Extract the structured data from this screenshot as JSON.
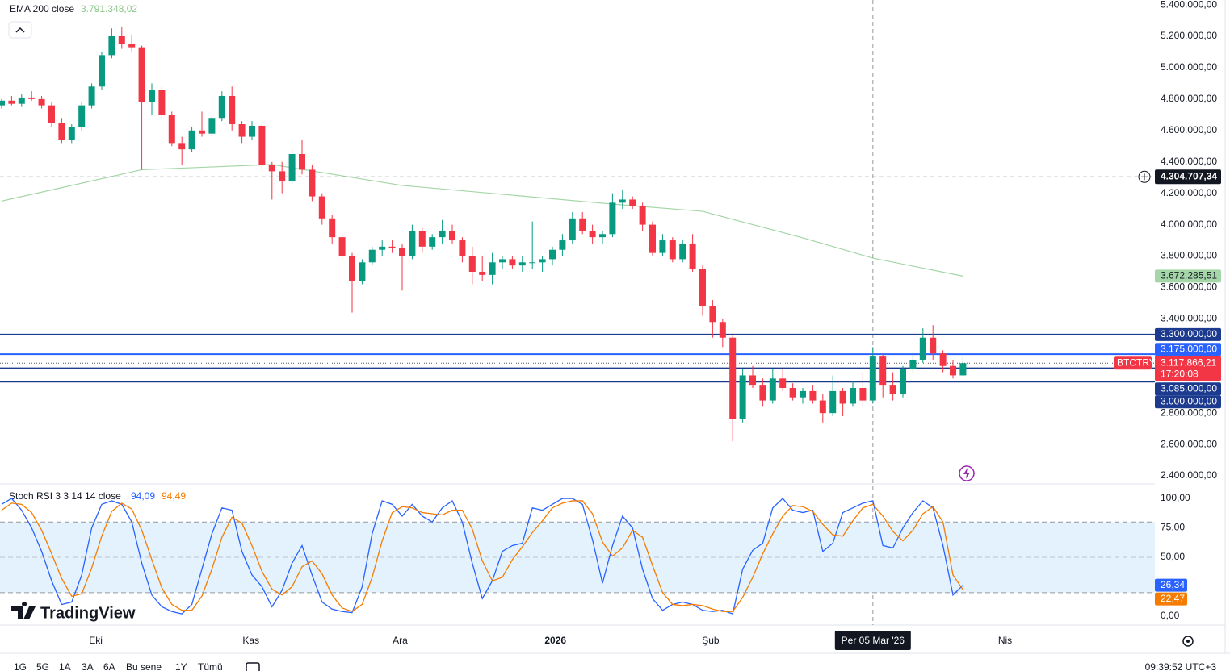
{
  "chart_data": [
    {
      "type": "candlestick",
      "name": "BTCTRY",
      "indicator": "EMA 200 close",
      "indicator_value": "3.791.348,02",
      "indicator_color": "#8bc98b",
      "up_color": "#089981",
      "down_color": "#f23645",
      "open": [
        4760000,
        4790000,
        4770000,
        4810000,
        4800000,
        4760000,
        4650000,
        4540000,
        4620000,
        4760000,
        4880000,
        5080000,
        5200000,
        5150000,
        5130000,
        4780000,
        4860000,
        4700000,
        4520000,
        4480000,
        4600000,
        4580000,
        4680000,
        4820000,
        4640000,
        4560000,
        4630000,
        4380000,
        4340000,
        4280000,
        4450000,
        4350000,
        4180000,
        4040000,
        3920000,
        3800000,
        3640000,
        3760000,
        3840000,
        3860000,
        3850000,
        3800000,
        3960000,
        3860000,
        3920000,
        3960000,
        3900000,
        3800000,
        3700000,
        3680000,
        3760000,
        3780000,
        3740000,
        3760000,
        3760000,
        3780000,
        3840000,
        3900000,
        4040000,
        3960000,
        3920000,
        3940000,
        4140000,
        4160000,
        4120000,
        4000000,
        3820000,
        3900000,
        3780000,
        3880000,
        3720000,
        3480000,
        3380000,
        3280000,
        2760000,
        3040000,
        2980000,
        2880000,
        3020000,
        2960000,
        2900000,
        2940000,
        2880000,
        2800000,
        2940000,
        2860000,
        2960000,
        2880000,
        3160000,
        2980000,
        2920000,
        3080000,
        3140000,
        3280000,
        3180000,
        3100000,
        3040000
      ],
      "high": [
        4800000,
        4820000,
        4830000,
        4850000,
        4820000,
        4780000,
        4680000,
        4640000,
        4780000,
        4900000,
        5100000,
        5250000,
        5260000,
        5210000,
        5140000,
        4900000,
        4880000,
        4720000,
        4560000,
        4620000,
        4720000,
        4700000,
        4850000,
        4880000,
        4660000,
        4660000,
        4640000,
        4400000,
        4400000,
        4480000,
        4540000,
        4380000,
        4200000,
        4060000,
        3940000,
        3820000,
        3780000,
        3860000,
        3900000,
        3900000,
        3880000,
        4000000,
        3980000,
        3940000,
        4030000,
        4000000,
        3920000,
        3860000,
        3800000,
        3820000,
        3800000,
        3800000,
        3800000,
        4020000,
        3800000,
        3860000,
        3940000,
        4080000,
        4080000,
        4000000,
        3960000,
        4200000,
        4220000,
        4180000,
        4140000,
        4020000,
        3940000,
        3920000,
        3900000,
        3940000,
        3740000,
        3520000,
        3400000,
        3300000,
        3080000,
        3100000,
        3020000,
        3080000,
        3080000,
        2990000,
        2960000,
        2980000,
        2920000,
        3040000,
        2960000,
        3000000,
        3060000,
        3220000,
        3180000,
        3060000,
        3100000,
        3180000,
        3340000,
        3360000,
        3200000,
        3140000,
        3160000
      ],
      "low": [
        4740000,
        4760000,
        4750000,
        4790000,
        4740000,
        4620000,
        4520000,
        4520000,
        4600000,
        4740000,
        4860000,
        5060000,
        5120000,
        5100000,
        4350000,
        4700000,
        4680000,
        4500000,
        4380000,
        4460000,
        4560000,
        4560000,
        4660000,
        4600000,
        4520000,
        4540000,
        4350000,
        4160000,
        4200000,
        4260000,
        4320000,
        4150000,
        4000000,
        3880000,
        3780000,
        3440000,
        3620000,
        3740000,
        3800000,
        3820000,
        3580000,
        3780000,
        3820000,
        3840000,
        3880000,
        3880000,
        3760000,
        3620000,
        3640000,
        3620000,
        3720000,
        3720000,
        3700000,
        3720000,
        3700000,
        3740000,
        3800000,
        3880000,
        3940000,
        3880000,
        3880000,
        3920000,
        4100000,
        4100000,
        3960000,
        3800000,
        3800000,
        3760000,
        3760000,
        3700000,
        3420000,
        3280000,
        3220000,
        2620000,
        2740000,
        2960000,
        2840000,
        2860000,
        2940000,
        2880000,
        2860000,
        2860000,
        2740000,
        2780000,
        2780000,
        2840000,
        2840000,
        2860000,
        2900000,
        2880000,
        2900000,
        3060000,
        3120000,
        3140000,
        3060000,
        3020000,
        3030000
      ],
      "close": [
        4790000,
        4770000,
        4810000,
        4800000,
        4760000,
        4650000,
        4540000,
        4620000,
        4760000,
        4880000,
        5080000,
        5200000,
        5150000,
        5130000,
        4780000,
        4860000,
        4700000,
        4520000,
        4480000,
        4600000,
        4580000,
        4680000,
        4820000,
        4640000,
        4560000,
        4630000,
        4380000,
        4340000,
        4280000,
        4450000,
        4350000,
        4180000,
        4040000,
        3920000,
        3800000,
        3640000,
        3760000,
        3840000,
        3860000,
        3850000,
        3800000,
        3960000,
        3860000,
        3920000,
        3960000,
        3900000,
        3800000,
        3700000,
        3680000,
        3760000,
        3780000,
        3740000,
        3760000,
        3760000,
        3780000,
        3840000,
        3900000,
        4040000,
        3960000,
        3920000,
        3940000,
        4140000,
        4160000,
        4120000,
        4000000,
        3820000,
        3900000,
        3780000,
        3880000,
        3720000,
        3480000,
        3380000,
        3280000,
        2760000,
        3040000,
        2980000,
        2880000,
        3020000,
        2960000,
        2900000,
        2940000,
        2880000,
        2800000,
        2940000,
        2860000,
        2960000,
        2880000,
        3160000,
        2980000,
        2920000,
        3080000,
        3140000,
        3280000,
        3180000,
        3100000,
        3040000,
        3117866.21
      ],
      "ema": {
        "color": "#a5d6a7",
        "x": [
          0,
          14,
          27,
          40,
          61,
          70,
          80,
          87,
          96
        ],
        "values": [
          4150000,
          4350000,
          4383000,
          4250000,
          4131000,
          4085000,
          3916000,
          3787000,
          3672285.51
        ],
        "last_label": "3.672.285,51"
      },
      "levels": [
        {
          "value": 3300000,
          "label": "3.300.000,00",
          "color": "#1c3b8f"
        },
        {
          "value": 3175000,
          "label": "3.175.000,00",
          "color": "#2962ff"
        },
        {
          "value": 3085000,
          "label": "3.085.000,00",
          "color": "#1c3b8f"
        },
        {
          "value": 3000000,
          "label": "3.000.000,00",
          "color": "#1c3b8f"
        }
      ],
      "last_price": {
        "value": 3117866.21,
        "label": "3.117.866,21",
        "countdown": "17:20:08",
        "color": "#f23645"
      },
      "crosshair": {
        "price": {
          "value": 4304707.34,
          "label": "4.304.707,34"
        },
        "x": 87,
        "x_label": "Per 05 Mar '26"
      },
      "ylim": [
        2348729,
        5431190
      ],
      "yticks": [
        {
          "value": 2400000,
          "label": "2.400.000,00"
        },
        {
          "value": 2600000,
          "label": "2.600.000,00"
        },
        {
          "value": 2800000,
          "label": "2.800.000,00"
        },
        {
          "value": 3400000,
          "label": "3.400.000,00"
        },
        {
          "value": 3600000,
          "label": "3.600.000,00"
        },
        {
          "value": 3800000,
          "label": "3.800.000,00"
        },
        {
          "value": 4000000,
          "label": "4.000.000,00"
        },
        {
          "value": 4200000,
          "label": "4.200.000,00"
        },
        {
          "value": 4400000,
          "label": "4.400.000,00"
        },
        {
          "value": 4600000,
          "label": "4.600.000,00"
        },
        {
          "value": 4800000,
          "label": "4.800.000,00"
        },
        {
          "value": 5000000,
          "label": "5.000.000,00"
        },
        {
          "value": 5200000,
          "label": "5.200.000,00"
        },
        {
          "value": 5400000,
          "label": "5.400.000,00"
        }
      ],
      "xlim": [
        -0.16,
        115.16
      ],
      "xticks": [
        {
          "value": 9.4,
          "label": "Eki"
        },
        {
          "value": 24.9,
          "label": "Kas"
        },
        {
          "value": 39.8,
          "label": "Ara"
        },
        {
          "value": 55.3,
          "label": "2026"
        },
        {
          "value": 70.8,
          "label": "Şub"
        },
        {
          "value": 100.2,
          "label": "Nis"
        }
      ]
    },
    {
      "type": "stoch_rsi",
      "title": "Stoch RSI 3 3 14 14 close",
      "ylim": [
        -7.5,
        110.3
      ],
      "band": [
        20,
        80
      ],
      "midline": 50,
      "band_color": "#e3f2fd",
      "yticks": [
        {
          "value": 0,
          "label": "0,00"
        },
        {
          "value": 50,
          "label": "50,00"
        },
        {
          "value": 75,
          "label": "75,00"
        },
        {
          "value": 100,
          "label": "100,00"
        }
      ],
      "series": [
        {
          "color": "#2962ff",
          "header_value": "94,09",
          "last_label": "26,34",
          "values": [
            95,
            100,
            90,
            75,
            55,
            30,
            10,
            12,
            35,
            75,
            95,
            98,
            95,
            80,
            45,
            18,
            8,
            4,
            2,
            10,
            40,
            70,
            92,
            90,
            55,
            35,
            25,
            8,
            22,
            45,
            60,
            35,
            12,
            6,
            4,
            3,
            25,
            70,
            98,
            95,
            85,
            95,
            85,
            80,
            92,
            98,
            80,
            45,
            15,
            30,
            55,
            60,
            62,
            92,
            90,
            95,
            100,
            100,
            95,
            65,
            28,
            60,
            85,
            75,
            40,
            15,
            5,
            10,
            12,
            10,
            5,
            4,
            5,
            2,
            40,
            56,
            62,
            92,
            100,
            90,
            88,
            90,
            55,
            62,
            88,
            92,
            96,
            98,
            60,
            58,
            75,
            88,
            98,
            92,
            60,
            18,
            26.34
          ]
        },
        {
          "color": "#f57c00",
          "header_value": "94,49",
          "last_label": "22,47",
          "values": [
            90,
            96,
            95,
            88,
            73,
            53,
            32,
            17,
            19,
            41,
            68,
            89,
            96,
            91,
            73,
            48,
            24,
            10,
            5,
            5,
            17,
            40,
            67,
            84,
            79,
            60,
            38,
            23,
            18,
            25,
            42,
            47,
            36,
            18,
            7,
            4,
            10,
            33,
            64,
            88,
            93,
            92,
            88,
            87,
            86,
            90,
            90,
            74,
            47,
            30,
            33,
            48,
            59,
            71,
            81,
            92,
            96,
            98,
            98,
            87,
            63,
            51,
            58,
            73,
            67,
            43,
            20,
            10,
            9,
            10,
            9,
            6,
            4,
            4,
            16,
            33,
            53,
            70,
            85,
            94,
            93,
            89,
            78,
            69,
            68,
            81,
            92,
            95,
            85,
            72,
            64,
            73,
            87,
            93,
            80,
            35,
            22.47
          ]
        }
      ]
    }
  ],
  "branding": "TradingView",
  "toolbar": {
    "ranges": [
      "1G",
      "5G",
      "1A",
      "3A",
      "6A",
      "Bu sene",
      "1Y",
      "Tümü"
    ],
    "clock": "09:39:52 UTC+3"
  }
}
